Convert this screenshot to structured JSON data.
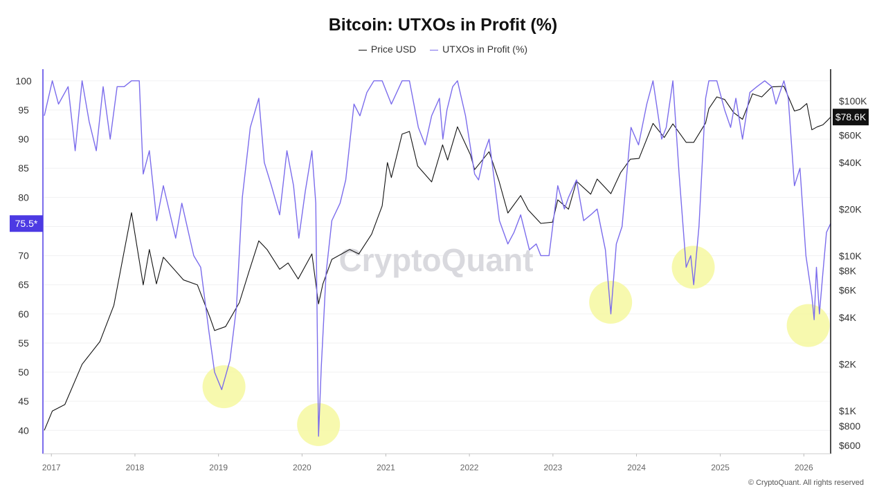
{
  "chart_data": {
    "type": "line",
    "title": "Bitcoin: UTXOs in Profit (%)",
    "legend_placement": "top-center",
    "grid": true,
    "x_axis": {
      "type": "date",
      "range": [
        "2016-11-25",
        "2026-04-28"
      ],
      "tick_labels": [
        "2017",
        "2018",
        "2019",
        "2020",
        "2021",
        "2022",
        "2023",
        "2024",
        "2025",
        "2026"
      ]
    },
    "y_left": {
      "range": [
        36,
        102
      ],
      "tick_labels": [
        "40",
        "45",
        "50",
        "55",
        "60",
        "65",
        "70",
        "75",
        "80",
        "85",
        "90",
        "95",
        "100"
      ],
      "current_label": "75.5*",
      "current_value": 75.5,
      "current_color": "#4c3ae3"
    },
    "y_right": {
      "scale": "log",
      "range": [
        530,
        160000
      ],
      "tick_values": [
        600,
        800,
        1000,
        2000,
        4000,
        6000,
        8000,
        10000,
        20000,
        40000,
        60000,
        100000
      ],
      "tick_labels": [
        "$600",
        "$800",
        "$1K",
        "$2K",
        "$4K",
        "$6K",
        "$8K",
        "$10K",
        "$20K",
        "$40K",
        "$60K",
        "$100K"
      ],
      "current_label": "$78.6K",
      "current_value": 78600
    },
    "series": [
      {
        "name": "Price USD",
        "axis": "right",
        "color": "#111111",
        "x": [
          "2016-12-01",
          "2017-01-05",
          "2017-03-01",
          "2017-05-15",
          "2017-08-01",
          "2017-10-01",
          "2017-12-17",
          "2018-02-06",
          "2018-03-05",
          "2018-04-05",
          "2018-05-05",
          "2018-08-01",
          "2018-10-01",
          "2018-11-25",
          "2018-12-15",
          "2019-02-01",
          "2019-04-02",
          "2019-05-15",
          "2019-06-26",
          "2019-08-01",
          "2019-09-25",
          "2019-11-01",
          "2019-12-15",
          "2020-02-13",
          "2020-03-13",
          "2020-04-01",
          "2020-05-10",
          "2020-07-27",
          "2020-09-05",
          "2020-10-31",
          "2020-12-16",
          "2021-01-08",
          "2021-01-25",
          "2021-03-13",
          "2021-04-14",
          "2021-05-20",
          "2021-07-20",
          "2021-09-06",
          "2021-09-28",
          "2021-11-10",
          "2022-01-05",
          "2022-01-24",
          "2022-03-28",
          "2022-05-10",
          "2022-06-18",
          "2022-08-13",
          "2022-09-15",
          "2022-11-09",
          "2022-12-30",
          "2023-01-22",
          "2023-03-10",
          "2023-04-14",
          "2023-06-15",
          "2023-07-13",
          "2023-09-11",
          "2023-10-24",
          "2023-12-05",
          "2024-01-12",
          "2024-03-13",
          "2024-05-01",
          "2024-06-08",
          "2024-08-05",
          "2024-09-07",
          "2024-10-29",
          "2024-11-12",
          "2024-12-17",
          "2025-01-20",
          "2025-02-28",
          "2025-04-08",
          "2025-05-22",
          "2025-07-01",
          "2025-08-14",
          "2025-10-06",
          "2025-11-21",
          "2025-12-15",
          "2026-01-14",
          "2026-02-05",
          "2026-03-01",
          "2026-03-25",
          "2026-04-15",
          "2026-04-28"
        ],
        "values": [
          750,
          1000,
          1100,
          2000,
          2800,
          4800,
          19000,
          6500,
          11000,
          6600,
          9800,
          7000,
          6500,
          4000,
          3300,
          3500,
          5000,
          8000,
          12500,
          11000,
          8200,
          9000,
          7100,
          10300,
          4900,
          6600,
          9500,
          11000,
          10300,
          13800,
          21000,
          40000,
          32000,
          61000,
          63500,
          38000,
          30000,
          52000,
          41500,
          68000,
          45000,
          36000,
          47000,
          30500,
          18900,
          24500,
          19800,
          16200,
          16500,
          23000,
          20000,
          30300,
          25000,
          31300,
          25200,
          34500,
          42000,
          42500,
          71500,
          58000,
          71000,
          54000,
          54000,
          72000,
          89000,
          106000,
          102000,
          84000,
          76000,
          111000,
          106000,
          123000,
          124000,
          86000,
          88000,
          96000,
          65000,
          68000,
          70000,
          75000,
          78600
        ]
      },
      {
        "name": "UTXOs in Profit (%)",
        "axis": "left",
        "color": "#7b6cec",
        "x": [
          "2016-12-01",
          "2017-01-05",
          "2017-02-01",
          "2017-03-15",
          "2017-04-15",
          "2017-05-15",
          "2017-06-15",
          "2017-07-16",
          "2017-08-15",
          "2017-09-15",
          "2017-10-15",
          "2017-11-15",
          "2017-12-17",
          "2018-01-20",
          "2018-02-06",
          "2018-03-05",
          "2018-04-06",
          "2018-05-05",
          "2018-06-28",
          "2018-07-25",
          "2018-09-15",
          "2018-10-15",
          "2018-11-20",
          "2018-12-15",
          "2019-01-15",
          "2019-02-20",
          "2019-03-20",
          "2019-04-15",
          "2019-05-20",
          "2019-06-26",
          "2019-07-20",
          "2019-08-20",
          "2019-09-25",
          "2019-10-27",
          "2019-11-25",
          "2019-12-18",
          "2020-01-15",
          "2020-02-13",
          "2020-03-01",
          "2020-03-13",
          "2020-03-25",
          "2020-04-15",
          "2020-05-10",
          "2020-06-15",
          "2020-07-10",
          "2020-08-15",
          "2020-09-10",
          "2020-10-10",
          "2020-11-10",
          "2020-12-16",
          "2021-01-25",
          "2021-03-13",
          "2021-04-14",
          "2021-05-23",
          "2021-06-22",
          "2021-07-20",
          "2021-08-23",
          "2021-09-07",
          "2021-09-25",
          "2021-10-20",
          "2021-11-10",
          "2021-12-15",
          "2022-01-24",
          "2022-02-10",
          "2022-03-10",
          "2022-03-28",
          "2022-05-12",
          "2022-06-18",
          "2022-07-15",
          "2022-08-13",
          "2022-09-20",
          "2022-10-20",
          "2022-11-09",
          "2022-12-15",
          "2023-01-22",
          "2023-02-20",
          "2023-03-10",
          "2023-04-14",
          "2023-05-15",
          "2023-06-15",
          "2023-07-13",
          "2023-08-18",
          "2023-09-11",
          "2023-10-05",
          "2023-10-30",
          "2023-12-08",
          "2024-01-10",
          "2024-02-15",
          "2024-03-13",
          "2024-04-20",
          "2024-05-10",
          "2024-06-08",
          "2024-07-05",
          "2024-08-05",
          "2024-08-25",
          "2024-09-07",
          "2024-09-30",
          "2024-10-29",
          "2024-11-12",
          "2024-12-17",
          "2025-01-20",
          "2025-02-15",
          "2025-03-10",
          "2025-04-08",
          "2025-05-10",
          "2025-06-10",
          "2025-07-14",
          "2025-08-14",
          "2025-09-01",
          "2025-10-06",
          "2025-10-25",
          "2025-11-21",
          "2025-12-15",
          "2026-01-10",
          "2026-02-05",
          "2026-02-15",
          "2026-02-25",
          "2026-03-10",
          "2026-03-25",
          "2026-04-10",
          "2026-04-28"
        ],
        "values": [
          94,
          100,
          96,
          99,
          88,
          100,
          93,
          88,
          99,
          90,
          99,
          99,
          100,
          100,
          84,
          88,
          76,
          82,
          73,
          79,
          70,
          68,
          57,
          50,
          47,
          52,
          61,
          80,
          92,
          97,
          86,
          82,
          77,
          88,
          82,
          73,
          81,
          88,
          79,
          39,
          51,
          67,
          76,
          79,
          83,
          96,
          94,
          98,
          100,
          100,
          96,
          100,
          100,
          92,
          89,
          94,
          97,
          90,
          95,
          99,
          100,
          94,
          84,
          83,
          88,
          90,
          76,
          72,
          74,
          77,
          71,
          72,
          70,
          70,
          82,
          78,
          80,
          83,
          76,
          77,
          78,
          71,
          60,
          72,
          75,
          92,
          89,
          96,
          100,
          90,
          92,
          100,
          84,
          68,
          70,
          65,
          75,
          97,
          100,
          100,
          95,
          92,
          97,
          90,
          98,
          99,
          100,
          99,
          96,
          100,
          97,
          82,
          85,
          70,
          63,
          59,
          68,
          60,
          67,
          74,
          75.5
        ]
      }
    ],
    "annotations": [
      {
        "label": "",
        "shape": "circle",
        "color": "#f6f8a0",
        "x": "2019-01-25",
        "value": 47.5
      },
      {
        "label": "",
        "shape": "circle",
        "color": "#f6f8a0",
        "x": "2020-03-13",
        "value": 41
      },
      {
        "label": "",
        "shape": "circle",
        "color": "#f6f8a0",
        "x": "2023-09-10",
        "value": 62
      },
      {
        "label": "",
        "shape": "circle",
        "color": "#f6f8a0",
        "x": "2024-09-05",
        "value": 68
      },
      {
        "label": "",
        "shape": "circle",
        "color": "#f6f8a0",
        "x": "2026-01-20",
        "value": 58
      }
    ]
  },
  "watermark": "CryptoQuant",
  "copyright": "© CryptoQuant. All rights reserved"
}
